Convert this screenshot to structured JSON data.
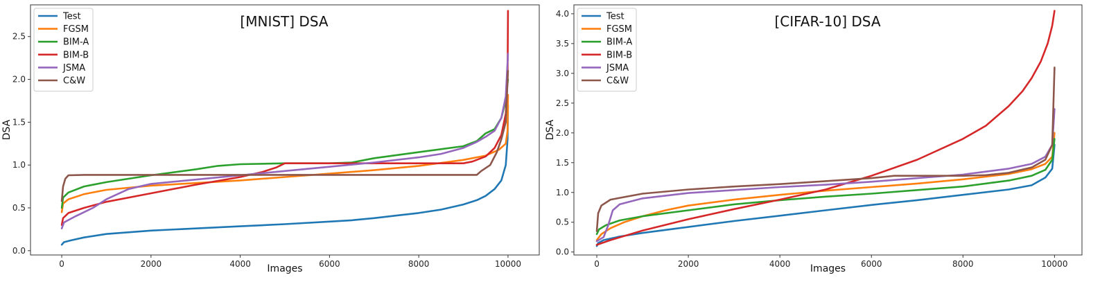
{
  "chart_data": [
    {
      "type": "line",
      "title": "[MNIST] DSA",
      "xlabel": "Images",
      "ylabel": "DSA",
      "xlim": [
        -700,
        10700
      ],
      "ylim": [
        -0.05,
        2.87
      ],
      "xticks": [
        0,
        2000,
        4000,
        6000,
        8000,
        10000
      ],
      "yticks": [
        0.0,
        0.5,
        1.0,
        1.5,
        2.0,
        2.5
      ],
      "yticklabels": [
        "0.0",
        "0.5",
        "1.0",
        "1.5",
        "2.0",
        "2.5"
      ],
      "grid": false,
      "legend_position": "top-left",
      "series": [
        {
          "name": "Test",
          "color": "#1f77b4",
          "points": [
            [
              0,
              0.07
            ],
            [
              50,
              0.1
            ],
            [
              200,
              0.12
            ],
            [
              500,
              0.155
            ],
            [
              1000,
              0.195
            ],
            [
              2000,
              0.235
            ],
            [
              3000,
              0.26
            ],
            [
              4000,
              0.285
            ],
            [
              5000,
              0.31
            ],
            [
              6000,
              0.34
            ],
            [
              6500,
              0.355
            ],
            [
              7000,
              0.38
            ],
            [
              7500,
              0.41
            ],
            [
              8000,
              0.44
            ],
            [
              8500,
              0.48
            ],
            [
              9000,
              0.54
            ],
            [
              9300,
              0.59
            ],
            [
              9500,
              0.64
            ],
            [
              9700,
              0.72
            ],
            [
              9850,
              0.82
            ],
            [
              9950,
              1.0
            ],
            [
              9990,
              1.3
            ],
            [
              10000,
              1.7
            ]
          ]
        },
        {
          "name": "FGSM",
          "color": "#ff7f0e",
          "points": [
            [
              0,
              0.45
            ],
            [
              30,
              0.55
            ],
            [
              150,
              0.6
            ],
            [
              500,
              0.66
            ],
            [
              1000,
              0.71
            ],
            [
              2000,
              0.76
            ],
            [
              3000,
              0.79
            ],
            [
              4000,
              0.82
            ],
            [
              5000,
              0.86
            ],
            [
              6000,
              0.9
            ],
            [
              7000,
              0.94
            ],
            [
              8000,
              0.99
            ],
            [
              9000,
              1.06
            ],
            [
              9500,
              1.11
            ],
            [
              9800,
              1.18
            ],
            [
              9950,
              1.25
            ],
            [
              9990,
              1.4
            ],
            [
              10000,
              1.82
            ]
          ]
        },
        {
          "name": "BIM-A",
          "color": "#2ca02c",
          "points": [
            [
              0,
              0.5
            ],
            [
              30,
              0.62
            ],
            [
              150,
              0.68
            ],
            [
              500,
              0.75
            ],
            [
              1000,
              0.8
            ],
            [
              2000,
              0.88
            ],
            [
              3000,
              0.95
            ],
            [
              3500,
              0.99
            ],
            [
              4000,
              1.01
            ],
            [
              5000,
              1.02
            ],
            [
              6000,
              1.02
            ],
            [
              6500,
              1.03
            ],
            [
              7000,
              1.08
            ],
            [
              8000,
              1.15
            ],
            [
              9000,
              1.22
            ],
            [
              9300,
              1.28
            ],
            [
              9500,
              1.37
            ],
            [
              9700,
              1.42
            ],
            [
              9850,
              1.55
            ],
            [
              9950,
              1.75
            ],
            [
              10000,
              2.0
            ]
          ]
        },
        {
          "name": "BIM-B",
          "color": "#d62728",
          "points": [
            [
              0,
              0.3
            ],
            [
              30,
              0.38
            ],
            [
              150,
              0.44
            ],
            [
              500,
              0.5
            ],
            [
              1000,
              0.57
            ],
            [
              2000,
              0.67
            ],
            [
              3000,
              0.77
            ],
            [
              4000,
              0.86
            ],
            [
              4500,
              0.92
            ],
            [
              4800,
              0.97
            ],
            [
              5000,
              1.02
            ],
            [
              6000,
              1.02
            ],
            [
              7000,
              1.02
            ],
            [
              8000,
              1.02
            ],
            [
              9000,
              1.02
            ],
            [
              9200,
              1.04
            ],
            [
              9500,
              1.1
            ],
            [
              9700,
              1.2
            ],
            [
              9850,
              1.35
            ],
            [
              9950,
              1.6
            ],
            [
              9990,
              2.0
            ],
            [
              10000,
              2.8
            ]
          ]
        },
        {
          "name": "JSMA",
          "color": "#9467bd",
          "points": [
            [
              0,
              0.26
            ],
            [
              50,
              0.33
            ],
            [
              300,
              0.4
            ],
            [
              700,
              0.5
            ],
            [
              1000,
              0.6
            ],
            [
              1500,
              0.72
            ],
            [
              2000,
              0.78
            ],
            [
              3000,
              0.83
            ],
            [
              4000,
              0.88
            ],
            [
              5000,
              0.93
            ],
            [
              6000,
              0.98
            ],
            [
              7000,
              1.03
            ],
            [
              8000,
              1.09
            ],
            [
              8500,
              1.13
            ],
            [
              9000,
              1.2
            ],
            [
              9300,
              1.27
            ],
            [
              9500,
              1.33
            ],
            [
              9700,
              1.4
            ],
            [
              9850,
              1.55
            ],
            [
              9950,
              1.8
            ],
            [
              10000,
              2.3
            ]
          ]
        },
        {
          "name": "C&W",
          "color": "#8c564b",
          "points": [
            [
              0,
              0.58
            ],
            [
              30,
              0.75
            ],
            [
              80,
              0.84
            ],
            [
              150,
              0.88
            ],
            [
              500,
              0.885
            ],
            [
              2000,
              0.885
            ],
            [
              4000,
              0.885
            ],
            [
              6000,
              0.885
            ],
            [
              8000,
              0.885
            ],
            [
              9300,
              0.885
            ],
            [
              9400,
              0.93
            ],
            [
              9600,
              1.0
            ],
            [
              9750,
              1.15
            ],
            [
              9850,
              1.3
            ],
            [
              9950,
              1.5
            ],
            [
              10000,
              2.1
            ]
          ]
        }
      ]
    },
    {
      "type": "line",
      "title": "[CIFAR-10] DSA",
      "xlabel": "Images",
      "ylabel": "DSA",
      "xlim": [
        -500,
        10600
      ],
      "ylim": [
        -0.05,
        4.15
      ],
      "xticks": [
        0,
        2000,
        4000,
        6000,
        8000,
        10000
      ],
      "yticks": [
        0.0,
        0.5,
        1.0,
        1.5,
        2.0,
        2.5,
        3.0,
        3.5,
        4.0
      ],
      "yticklabels": [
        "0.0",
        "0.5",
        "1.0",
        "1.5",
        "2.0",
        "2.5",
        "3.0",
        "3.5",
        "4.0"
      ],
      "grid": false,
      "legend_position": "top-left",
      "series": [
        {
          "name": "Test",
          "color": "#1f77b4",
          "points": [
            [
              0,
              0.1
            ],
            [
              30,
              0.15
            ],
            [
              150,
              0.2
            ],
            [
              500,
              0.26
            ],
            [
              1000,
              0.32
            ],
            [
              2000,
              0.42
            ],
            [
              3000,
              0.52
            ],
            [
              4000,
              0.61
            ],
            [
              5000,
              0.7
            ],
            [
              6000,
              0.79
            ],
            [
              7000,
              0.87
            ],
            [
              8000,
              0.96
            ],
            [
              9000,
              1.05
            ],
            [
              9500,
              1.12
            ],
            [
              9800,
              1.25
            ],
            [
              9950,
              1.4
            ],
            [
              10000,
              1.8
            ]
          ]
        },
        {
          "name": "FGSM",
          "color": "#ff7f0e",
          "points": [
            [
              0,
              0.2
            ],
            [
              100,
              0.3
            ],
            [
              300,
              0.4
            ],
            [
              600,
              0.5
            ],
            [
              1000,
              0.6
            ],
            [
              1500,
              0.7
            ],
            [
              2000,
              0.78
            ],
            [
              3000,
              0.88
            ],
            [
              4000,
              0.96
            ],
            [
              5000,
              1.03
            ],
            [
              6000,
              1.09
            ],
            [
              7000,
              1.15
            ],
            [
              8000,
              1.22
            ],
            [
              9000,
              1.31
            ],
            [
              9500,
              1.39
            ],
            [
              9800,
              1.48
            ],
            [
              9950,
              1.6
            ],
            [
              10000,
              2.0
            ]
          ]
        },
        {
          "name": "BIM-A",
          "color": "#2ca02c",
          "points": [
            [
              0,
              0.3
            ],
            [
              50,
              0.38
            ],
            [
              200,
              0.45
            ],
            [
              500,
              0.53
            ],
            [
              1000,
              0.6
            ],
            [
              2000,
              0.7
            ],
            [
              3000,
              0.8
            ],
            [
              4000,
              0.87
            ],
            [
              5000,
              0.93
            ],
            [
              6000,
              0.98
            ],
            [
              7000,
              1.04
            ],
            [
              8000,
              1.1
            ],
            [
              9000,
              1.2
            ],
            [
              9500,
              1.28
            ],
            [
              9800,
              1.38
            ],
            [
              9950,
              1.55
            ],
            [
              10000,
              1.9
            ]
          ]
        },
        {
          "name": "BIM-B",
          "color": "#d62728",
          "points": [
            [
              0,
              0.12
            ],
            [
              300,
              0.2
            ],
            [
              1000,
              0.36
            ],
            [
              2000,
              0.55
            ],
            [
              3000,
              0.72
            ],
            [
              4000,
              0.88
            ],
            [
              5000,
              1.05
            ],
            [
              6000,
              1.28
            ],
            [
              7000,
              1.55
            ],
            [
              8000,
              1.9
            ],
            [
              8500,
              2.12
            ],
            [
              9000,
              2.45
            ],
            [
              9300,
              2.7
            ],
            [
              9500,
              2.92
            ],
            [
              9700,
              3.2
            ],
            [
              9850,
              3.5
            ],
            [
              9950,
              3.8
            ],
            [
              10000,
              4.05
            ]
          ]
        },
        {
          "name": "JSMA",
          "color": "#9467bd",
          "points": [
            [
              0,
              0.18
            ],
            [
              150,
              0.25
            ],
            [
              250,
              0.45
            ],
            [
              350,
              0.7
            ],
            [
              500,
              0.8
            ],
            [
              1000,
              0.9
            ],
            [
              2000,
              0.99
            ],
            [
              3000,
              1.04
            ],
            [
              4000,
              1.09
            ],
            [
              5000,
              1.13
            ],
            [
              6000,
              1.18
            ],
            [
              7000,
              1.24
            ],
            [
              8000,
              1.3
            ],
            [
              9000,
              1.4
            ],
            [
              9500,
              1.48
            ],
            [
              9800,
              1.6
            ],
            [
              9950,
              1.8
            ],
            [
              10000,
              2.4
            ]
          ]
        },
        {
          "name": "C&W",
          "color": "#8c564b",
          "points": [
            [
              0,
              0.35
            ],
            [
              30,
              0.65
            ],
            [
              100,
              0.78
            ],
            [
              300,
              0.88
            ],
            [
              1000,
              0.98
            ],
            [
              2000,
              1.05
            ],
            [
              3000,
              1.1
            ],
            [
              4000,
              1.14
            ],
            [
              5000,
              1.19
            ],
            [
              6000,
              1.24
            ],
            [
              6500,
              1.28
            ],
            [
              7000,
              1.28
            ],
            [
              8000,
              1.28
            ],
            [
              8500,
              1.29
            ],
            [
              9000,
              1.33
            ],
            [
              9500,
              1.42
            ],
            [
              9800,
              1.55
            ],
            [
              9950,
              1.8
            ],
            [
              10000,
              3.1
            ]
          ]
        }
      ]
    }
  ]
}
